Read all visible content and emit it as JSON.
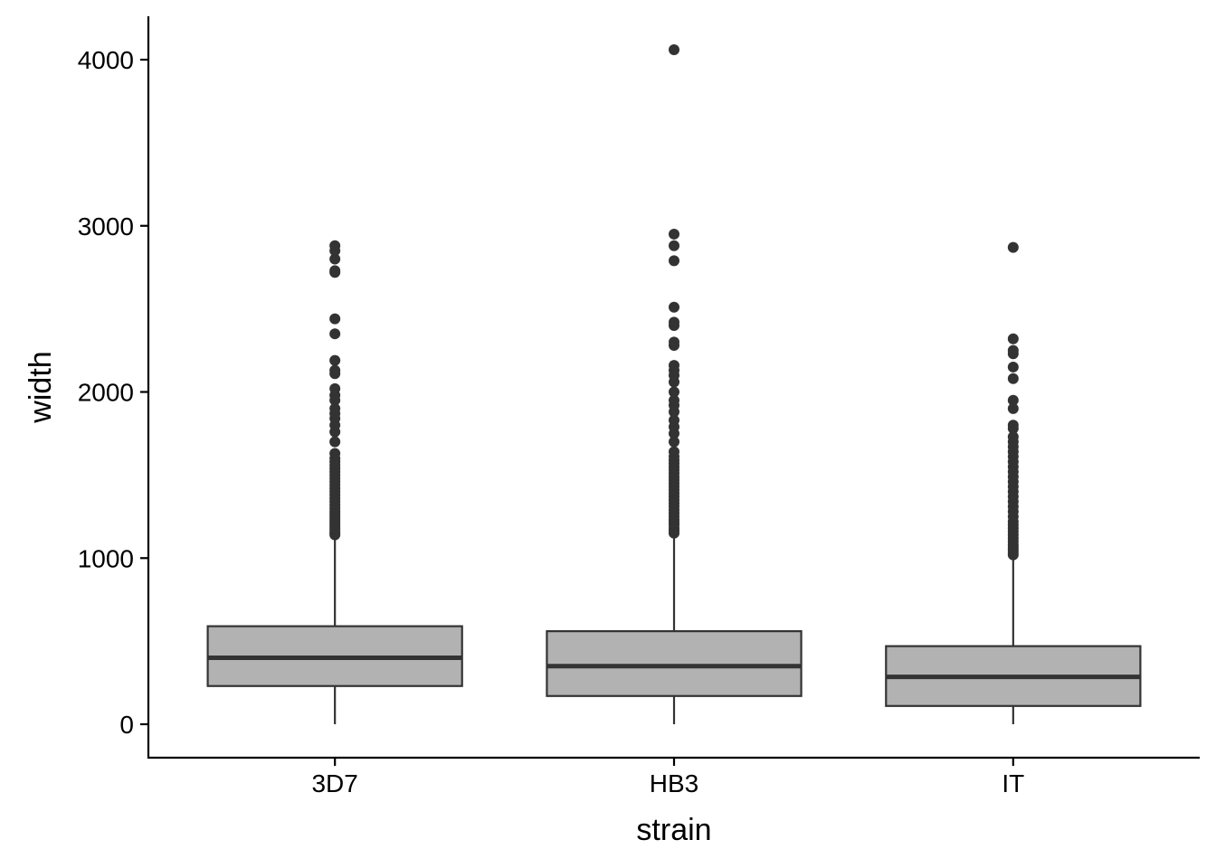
{
  "chart_data": {
    "type": "boxplot",
    "xlabel": "strain",
    "ylabel": "width",
    "ylim": [
      -200,
      4260
    ],
    "yticks": [
      0,
      1000,
      2000,
      3000,
      4000
    ],
    "grid": false,
    "legend": "none",
    "colors": {
      "box_fill": "#b2b2b2",
      "line": "#333333",
      "outlier": "#333333",
      "axis": "#000000"
    },
    "categories": [
      "3D7",
      "HB3",
      "IT"
    ],
    "boxes": [
      {
        "category": "3D7",
        "whisker_low": 0,
        "q1": 230,
        "median": 400,
        "q3": 590,
        "whisker_high": 1130,
        "outliers": [
          1140,
          1150,
          1160,
          1175,
          1190,
          1205,
          1220,
          1235,
          1250,
          1265,
          1280,
          1300,
          1320,
          1340,
          1360,
          1380,
          1400,
          1420,
          1440,
          1460,
          1480,
          1500,
          1520,
          1540,
          1560,
          1580,
          1600,
          1630,
          1700,
          1760,
          1800,
          1840,
          1870,
          1900,
          1950,
          1980,
          2020,
          2110,
          2130,
          2190,
          2350,
          2440,
          2720,
          2730,
          2800,
          2850,
          2880
        ]
      },
      {
        "category": "HB3",
        "whisker_low": 0,
        "q1": 170,
        "median": 350,
        "q3": 560,
        "whisker_high": 1140,
        "outliers": [
          1150,
          1165,
          1180,
          1200,
          1215,
          1230,
          1250,
          1270,
          1290,
          1310,
          1330,
          1350,
          1370,
          1390,
          1410,
          1430,
          1450,
          1470,
          1490,
          1510,
          1530,
          1550,
          1570,
          1590,
          1610,
          1640,
          1700,
          1750,
          1790,
          1830,
          1880,
          1920,
          1950,
          2000,
          2060,
          2100,
          2130,
          2160,
          2280,
          2300,
          2400,
          2420,
          2510,
          2790,
          2880,
          2950,
          4060
        ]
      },
      {
        "category": "IT",
        "whisker_low": 0,
        "q1": 110,
        "median": 285,
        "q3": 470,
        "whisker_high": 1010,
        "outliers": [
          1020,
          1035,
          1050,
          1065,
          1080,
          1100,
          1120,
          1140,
          1160,
          1180,
          1200,
          1220,
          1250,
          1280,
          1310,
          1340,
          1370,
          1400,
          1430,
          1460,
          1490,
          1520,
          1550,
          1580,
          1610,
          1640,
          1670,
          1700,
          1730,
          1780,
          1800,
          1900,
          1950,
          2080,
          2150,
          2230,
          2250,
          2320,
          2870
        ]
      }
    ]
  }
}
